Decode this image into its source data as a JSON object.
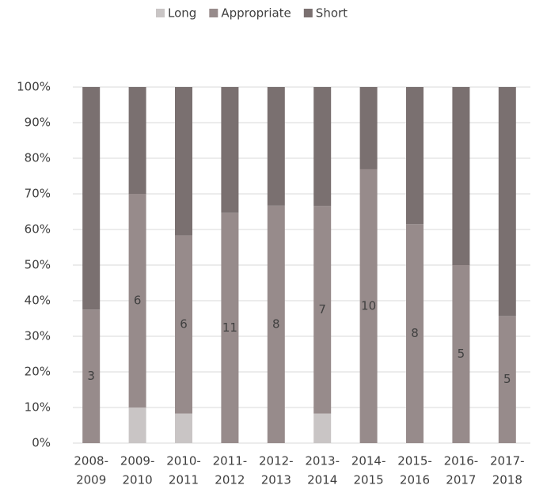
{
  "chart_data": {
    "type": "stacked_bar",
    "categories": [
      [
        "2008-",
        "2009"
      ],
      [
        "2009-",
        "2010"
      ],
      [
        "2010-",
        "2011"
      ],
      [
        "2011-",
        "2012"
      ],
      [
        "2012-",
        "2013"
      ],
      [
        "2013-",
        "2014"
      ],
      [
        "2014-",
        "2015"
      ],
      [
        "2015-",
        "2016"
      ],
      [
        "2016-",
        "2017"
      ],
      [
        "2017-",
        "2018"
      ]
    ],
    "series": [
      {
        "name": "Long",
        "color": "#c9c5c5",
        "values": [
          0,
          10,
          8.3,
          0,
          0,
          8.3,
          0,
          0,
          0,
          0
        ]
      },
      {
        "name": "Appropriate",
        "color": "#978b8b",
        "values": [
          37.5,
          60,
          50,
          64.7,
          66.7,
          58.3,
          76.9,
          61.5,
          50,
          35.7
        ],
        "data_labels": [
          "3",
          "6",
          "6",
          "11",
          "8",
          "7",
          "10",
          "8",
          "5",
          "5"
        ]
      },
      {
        "name": "Short",
        "color": "#7a7070",
        "values": [
          62.5,
          30,
          41.7,
          35.3,
          33.3,
          33.4,
          23.1,
          38.5,
          50,
          64.3
        ]
      }
    ],
    "ylim": [
      0,
      100
    ],
    "yticks": [
      {
        "value": 0,
        "label": "0%"
      },
      {
        "value": 10,
        "label": "10%"
      },
      {
        "value": 20,
        "label": "20%"
      },
      {
        "value": 30,
        "label": "30%"
      },
      {
        "value": 40,
        "label": "40%"
      },
      {
        "value": 50,
        "label": "50%"
      },
      {
        "value": 60,
        "label": "60%"
      },
      {
        "value": 70,
        "label": "70%"
      },
      {
        "value": 80,
        "label": "80%"
      },
      {
        "value": 90,
        "label": "90%"
      },
      {
        "value": 100,
        "label": "100%"
      }
    ],
    "grid": true,
    "legend": "top"
  }
}
